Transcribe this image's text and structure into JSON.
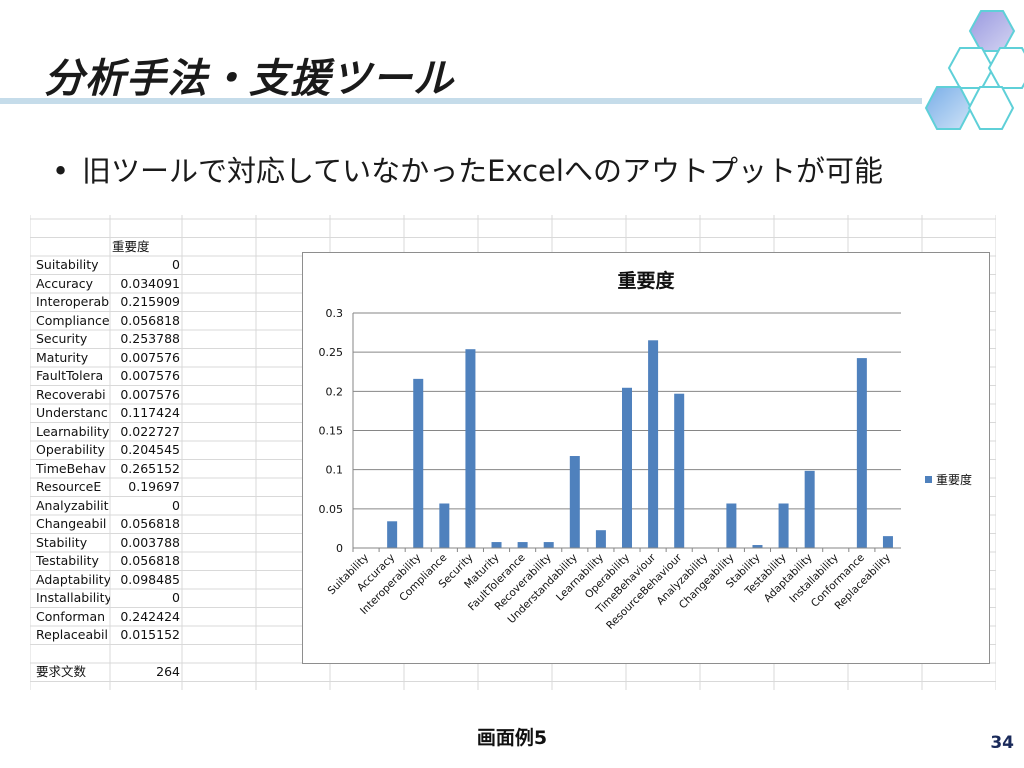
{
  "slide": {
    "title": "分析手法・支援ツール",
    "bullet": "旧ツールで対応していなかったExcelへのアウトプットが可能",
    "bullet_marker": "•",
    "caption": "画面例5",
    "page_number": "34"
  },
  "sheet": {
    "header": "重要度",
    "rows": [
      {
        "label": "Suitability",
        "value": "0"
      },
      {
        "label": "Accuracy",
        "value": "0.034091"
      },
      {
        "label": "Interoperab",
        "value": "0.215909"
      },
      {
        "label": "Compliance",
        "value": "0.056818"
      },
      {
        "label": "Security",
        "value": "0.253788"
      },
      {
        "label": "Maturity",
        "value": "0.007576"
      },
      {
        "label": "FaultTolera",
        "value": "0.007576"
      },
      {
        "label": "Recoverabi",
        "value": "0.007576"
      },
      {
        "label": "Understanc",
        "value": "0.117424"
      },
      {
        "label": "Learnability",
        "value": "0.022727"
      },
      {
        "label": "Operability",
        "value": "0.204545"
      },
      {
        "label": "TimeBehav",
        "value": "0.265152"
      },
      {
        "label": "ResourceE",
        "value": "0.19697"
      },
      {
        "label": "Analyzabilit",
        "value": "0"
      },
      {
        "label": "Changeabil",
        "value": "0.056818"
      },
      {
        "label": "Stability",
        "value": "0.003788"
      },
      {
        "label": "Testability",
        "value": "0.056818"
      },
      {
        "label": "Adaptability",
        "value": "0.098485"
      },
      {
        "label": "Installability",
        "value": "0"
      },
      {
        "label": "Conforman",
        "value": "0.242424"
      },
      {
        "label": "Replaceabil",
        "value": "0.015152"
      }
    ],
    "footer_label": "要求文数",
    "footer_value": "264"
  },
  "chart_data": {
    "type": "bar",
    "title": "重要度",
    "categories": [
      "Suitability",
      "Accuracy",
      "Interoperability",
      "Compliance",
      "Security",
      "Maturity",
      "FaultTolerance",
      "Recoverability",
      "Understandability",
      "Learnability",
      "Operability",
      "TimeBehaviour",
      "ResourceBehaviour",
      "Analyzability",
      "Changeability",
      "Stability",
      "Testability",
      "Adaptability",
      "Installability",
      "Conformance",
      "Replaceability"
    ],
    "series": [
      {
        "name": "重要度",
        "values": [
          0,
          0.034091,
          0.215909,
          0.056818,
          0.253788,
          0.007576,
          0.007576,
          0.007576,
          0.117424,
          0.022727,
          0.204545,
          0.265152,
          0.19697,
          0,
          0.056818,
          0.003788,
          0.056818,
          0.098485,
          0,
          0.242424,
          0.015152
        ]
      }
    ],
    "yticks": [
      "0",
      "0.05",
      "0.1",
      "0.15",
      "0.2",
      "0.25",
      "0.3"
    ],
    "ylim": [
      0,
      0.3
    ],
    "xlabel": "",
    "ylabel": "",
    "grid": true,
    "legend_position": "right",
    "bar_color": "#4f81bd"
  }
}
